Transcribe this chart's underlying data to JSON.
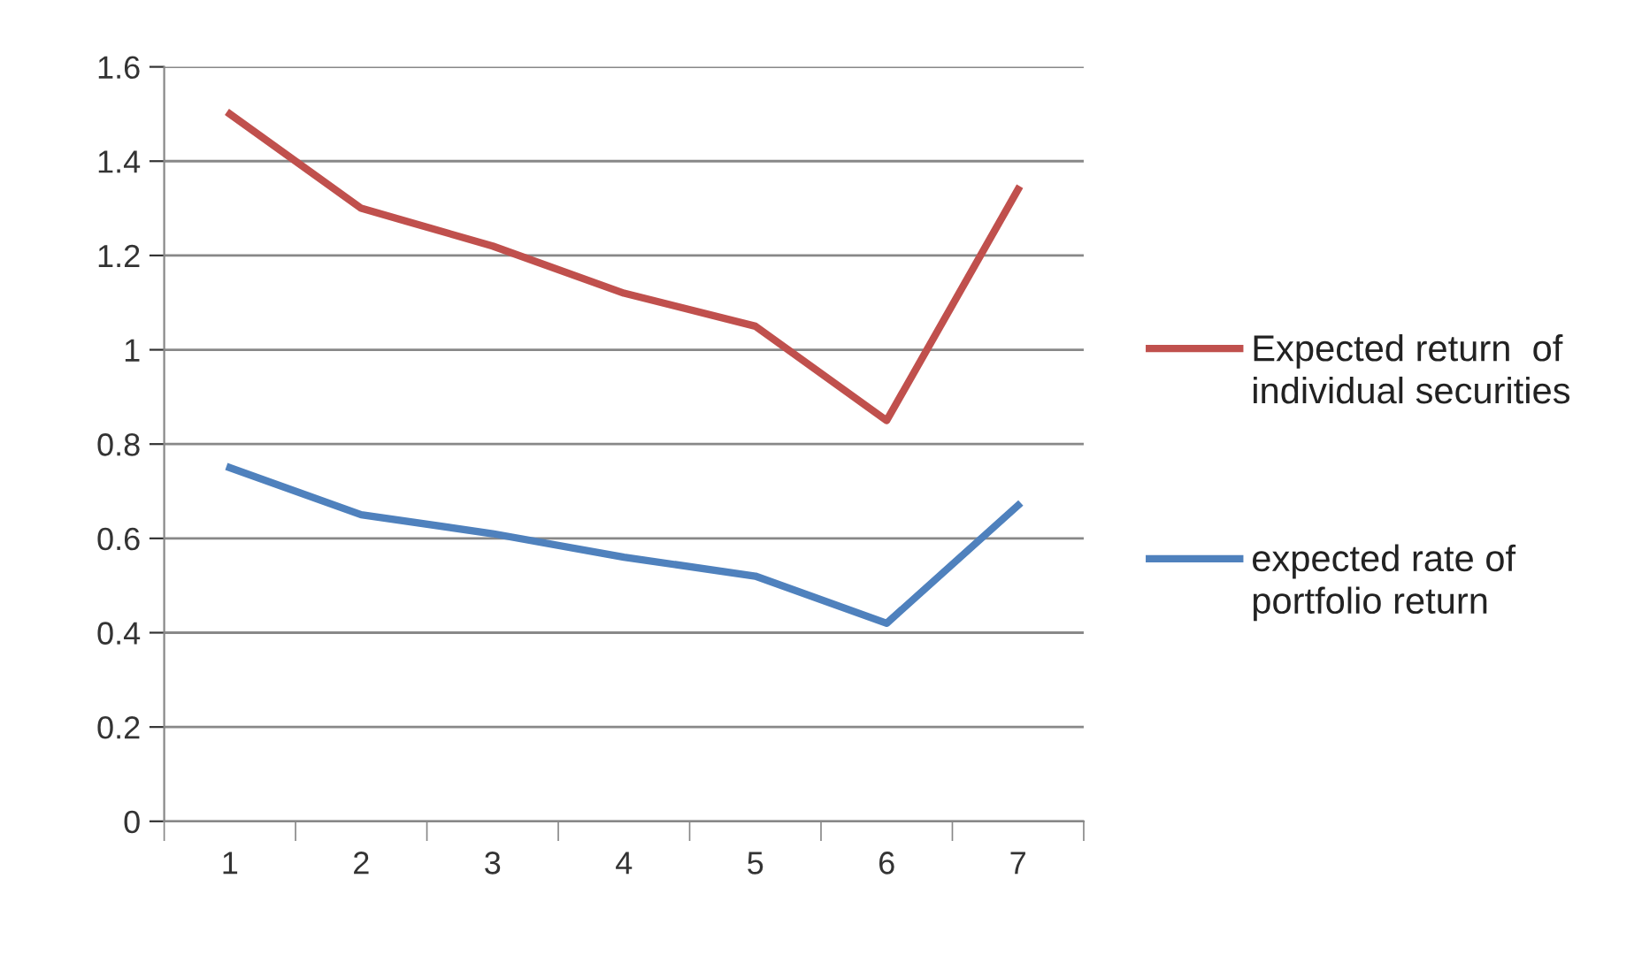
{
  "chart_data": {
    "type": "line",
    "categories": [
      "1",
      "2",
      "3",
      "4",
      "5",
      "6",
      "7"
    ],
    "series": [
      {
        "name": "Expected return  of individual securities",
        "color": "#c0504d",
        "values": [
          1.5,
          1.3,
          1.22,
          1.12,
          1.05,
          0.85,
          1.34
        ]
      },
      {
        "name": "expected rate of portfolio return",
        "color": "#4f81bd",
        "values": [
          0.75,
          0.65,
          0.61,
          0.56,
          0.52,
          0.42,
          0.67
        ]
      }
    ],
    "ylim": [
      0,
      1.6
    ],
    "yticks": [
      0,
      0.2,
      0.4,
      0.6,
      0.8,
      1,
      1.2,
      1.4,
      1.6
    ],
    "grid": "y",
    "legend": "right",
    "marker": "none",
    "line_style": "solid"
  }
}
